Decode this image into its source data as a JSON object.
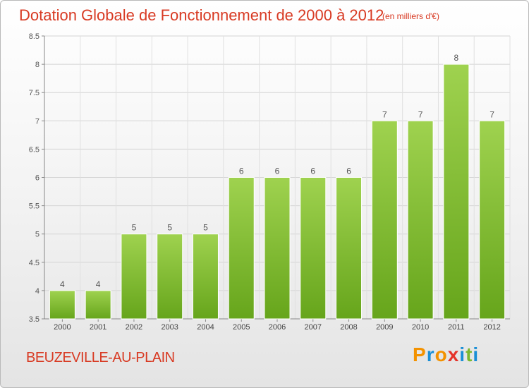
{
  "chart_data": {
    "type": "bar",
    "title": "Dotation Globale de Fonctionnement de 2000 à 2012",
    "subtitle": "(en milliers d'€)",
    "categories": [
      "2000",
      "2001",
      "2002",
      "2003",
      "2004",
      "2005",
      "2006",
      "2007",
      "2008",
      "2009",
      "2010",
      "2011",
      "2012"
    ],
    "values": [
      4,
      4,
      5,
      5,
      5,
      6,
      6,
      6,
      6,
      7,
      7,
      8,
      7
    ],
    "data_labels": [
      "4",
      "4",
      "5",
      "5",
      "5",
      "6",
      "6",
      "6",
      "6",
      "7",
      "7",
      "8",
      "7"
    ],
    "ylim": [
      3.5,
      8.5
    ],
    "yticks": [
      3.5,
      4,
      4.5,
      5,
      5.5,
      6,
      6.5,
      7,
      7.5,
      8,
      8.5
    ],
    "ytick_labels": [
      "3.5",
      "4",
      "4.5",
      "5",
      "5.5",
      "6",
      "6.5",
      "7",
      "7.5",
      "8",
      "8.5"
    ],
    "grid": true,
    "bar_color": "#7dbb2e"
  },
  "footer": {
    "place_name": "BEUZEVILLE-AU-PLAIN",
    "brand_letters": [
      "P",
      "r",
      "o",
      "x",
      "i",
      "t",
      "i"
    ],
    "brand_colors": [
      "#f39200",
      "#1a8fd6",
      "#f39200",
      "#e5332a",
      "#1a8fd6",
      "#7cb82f",
      "#1a8fd6"
    ]
  }
}
